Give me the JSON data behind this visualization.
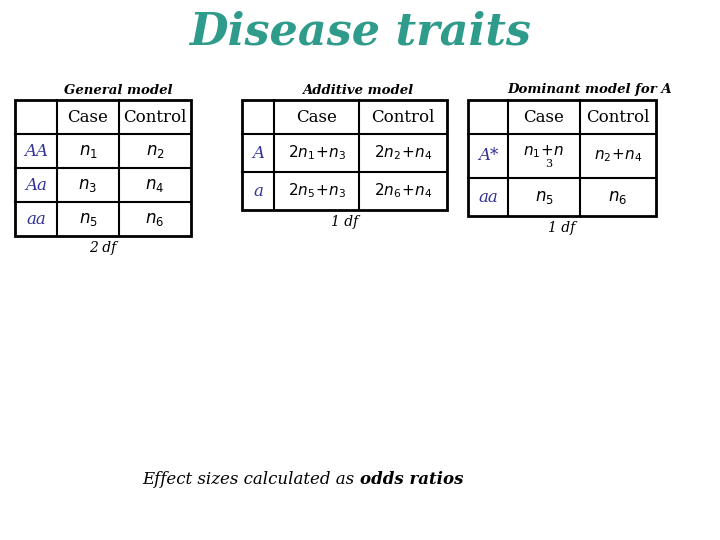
{
  "title": "Disease traits",
  "title_color": "#2E9B8B",
  "title_fontsize": 32,
  "bg_color": "#FFFFFF",
  "general_model_label": "General model",
  "additive_model_label": "Additive model",
  "dominant_model_label": "Dominant model for A",
  "blue_color": "#333399",
  "black_color": "#000000",
  "teal_color": "#2E9B8B",
  "fig_w": 7.2,
  "fig_h": 5.4,
  "dpi": 100
}
